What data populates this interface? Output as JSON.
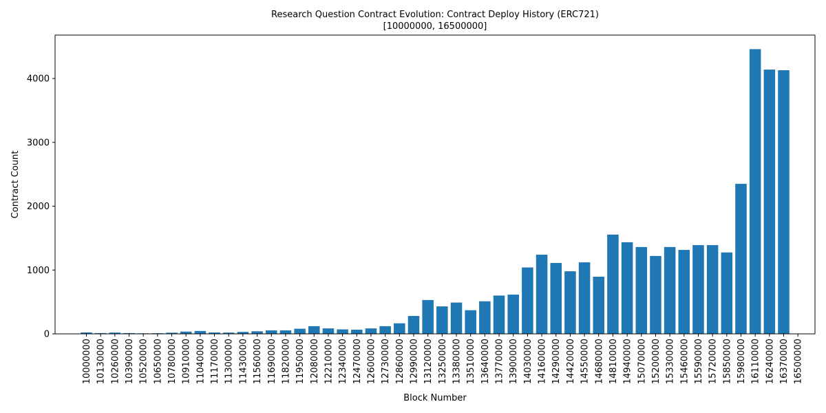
{
  "chart_data": {
    "type": "bar",
    "title": "Research Question Contract Evolution: Contract Deploy History (ERC721)",
    "subtitle": "[10000000, 16500000]",
    "xlabel": "Block Number",
    "ylabel": "Contract Count",
    "ylim": [
      0,
      4680
    ],
    "yticks": [
      0,
      1000,
      2000,
      3000,
      4000
    ],
    "bar_color": "#1f77b4",
    "grid": false,
    "legend": "none",
    "xtick_labels": [
      "10000000",
      "10130000",
      "10260000",
      "10390000",
      "10520000",
      "10650000",
      "10780000",
      "10910000",
      "11040000",
      "11170000",
      "11300000",
      "11430000",
      "11560000",
      "11690000",
      "11820000",
      "11950000",
      "12080000",
      "12210000",
      "12340000",
      "12470000",
      "12600000",
      "12730000",
      "12860000",
      "12990000",
      "13120000",
      "13250000",
      "13380000",
      "13510000",
      "13640000",
      "13770000",
      "13900000",
      "14030000",
      "14160000",
      "14290000",
      "14420000",
      "14550000",
      "14680000",
      "14810000",
      "14940000",
      "15070000",
      "15200000",
      "15330000",
      "15460000",
      "15590000",
      "15720000",
      "15850000",
      "15980000",
      "16110000",
      "16240000",
      "16370000",
      "16500000"
    ],
    "bars": [
      {
        "x": 10000000,
        "value": 22
      },
      {
        "x": 10130000,
        "value": 12
      },
      {
        "x": 10260000,
        "value": 20
      },
      {
        "x": 10390000,
        "value": 12
      },
      {
        "x": 10520000,
        "value": 8
      },
      {
        "x": 10650000,
        "value": 10
      },
      {
        "x": 10780000,
        "value": 18
      },
      {
        "x": 10910000,
        "value": 35
      },
      {
        "x": 11040000,
        "value": 45
      },
      {
        "x": 11170000,
        "value": 22
      },
      {
        "x": 11300000,
        "value": 20
      },
      {
        "x": 11430000,
        "value": 30
      },
      {
        "x": 11560000,
        "value": 40
      },
      {
        "x": 11690000,
        "value": 55
      },
      {
        "x": 11820000,
        "value": 55
      },
      {
        "x": 11950000,
        "value": 80
      },
      {
        "x": 12080000,
        "value": 120
      },
      {
        "x": 12210000,
        "value": 85
      },
      {
        "x": 12340000,
        "value": 70
      },
      {
        "x": 12470000,
        "value": 65
      },
      {
        "x": 12600000,
        "value": 85
      },
      {
        "x": 12730000,
        "value": 120
      },
      {
        "x": 12860000,
        "value": 165
      },
      {
        "x": 12990000,
        "value": 280
      },
      {
        "x": 13120000,
        "value": 530
      },
      {
        "x": 13250000,
        "value": 430
      },
      {
        "x": 13380000,
        "value": 490
      },
      {
        "x": 13510000,
        "value": 370
      },
      {
        "x": 13640000,
        "value": 510
      },
      {
        "x": 13770000,
        "value": 600
      },
      {
        "x": 13900000,
        "value": 615
      },
      {
        "x": 14030000,
        "value": 1040
      },
      {
        "x": 14160000,
        "value": 1240
      },
      {
        "x": 14290000,
        "value": 1110
      },
      {
        "x": 14420000,
        "value": 980
      },
      {
        "x": 14550000,
        "value": 1120
      },
      {
        "x": 14680000,
        "value": 895
      },
      {
        "x": 14810000,
        "value": 1555
      },
      {
        "x": 14940000,
        "value": 1435
      },
      {
        "x": 15070000,
        "value": 1360
      },
      {
        "x": 15200000,
        "value": 1220
      },
      {
        "x": 15330000,
        "value": 1360
      },
      {
        "x": 15460000,
        "value": 1315
      },
      {
        "x": 15590000,
        "value": 1390
      },
      {
        "x": 15720000,
        "value": 1390
      },
      {
        "x": 15850000,
        "value": 1275
      },
      {
        "x": 15980000,
        "value": 2350
      },
      {
        "x": 16110000,
        "value": 4460
      },
      {
        "x": 16240000,
        "value": 4140
      },
      {
        "x": 16370000,
        "value": 4130
      }
    ]
  }
}
